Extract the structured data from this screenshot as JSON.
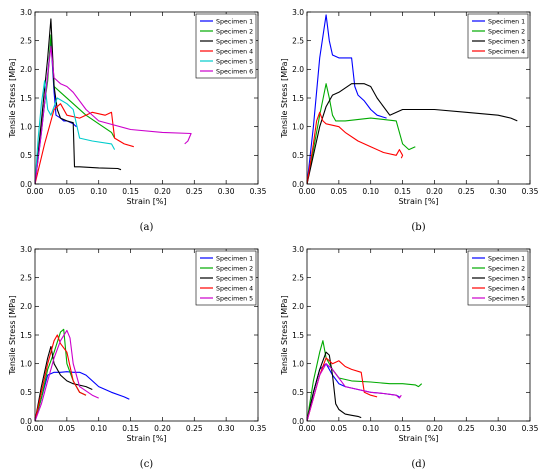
{
  "chart_data": [
    {
      "type": "line",
      "caption": "(a)",
      "xlabel": "Strain [%]",
      "ylabel": "Tensile Stress [MPa]",
      "xlim": [
        0,
        0.35
      ],
      "ylim": [
        0,
        3.0
      ],
      "xticks": [
        "0.00",
        "0.05",
        "0.10",
        "0.15",
        "0.20",
        "0.25",
        "0.30",
        "0.35"
      ],
      "yticks": [
        "0.0",
        "0.5",
        "1.0",
        "1.5",
        "2.0",
        "2.5",
        "3.0"
      ],
      "legend": "top-right",
      "grid": false,
      "series": [
        {
          "name": "Specimen 1",
          "color": "#0000ff",
          "x": [
            0,
            0.01,
            0.02,
            0.025,
            0.03,
            0.033,
            0.04,
            0.045,
            0.05,
            0.06,
            0.065
          ],
          "y": [
            0,
            0.9,
            1.9,
            2.5,
            1.6,
            1.2,
            1.15,
            1.1,
            1.1,
            1.05,
            1.0
          ]
        },
        {
          "name": "Specimen 2",
          "color": "#00aa00",
          "x": [
            0,
            0.01,
            0.02,
            0.025,
            0.03,
            0.04,
            0.06,
            0.08,
            0.1,
            0.12,
            0.125
          ],
          "y": [
            0,
            1.0,
            1.8,
            2.6,
            1.7,
            1.6,
            1.4,
            1.2,
            1.05,
            0.9,
            0.8
          ]
        },
        {
          "name": "Specimen 3",
          "color": "#000000",
          "x": [
            0,
            0.01,
            0.02,
            0.025,
            0.03,
            0.035,
            0.04,
            0.05,
            0.06,
            0.062,
            0.07,
            0.1,
            0.13,
            0.135
          ],
          "y": [
            0,
            1.1,
            2.2,
            2.88,
            1.7,
            1.3,
            1.15,
            1.1,
            1.07,
            0.3,
            0.3,
            0.28,
            0.27,
            0.25
          ]
        },
        {
          "name": "Specimen 4",
          "color": "#ff0000",
          "x": [
            0,
            0.015,
            0.03,
            0.04,
            0.05,
            0.07,
            0.09,
            0.11,
            0.12,
            0.125,
            0.14,
            0.155
          ],
          "y": [
            0,
            0.7,
            1.3,
            1.4,
            1.2,
            1.15,
            1.25,
            1.2,
            1.25,
            0.8,
            0.7,
            0.65
          ]
        },
        {
          "name": "Specimen 5",
          "color": "#00cccc",
          "x": [
            0,
            0.005,
            0.01,
            0.015,
            0.02,
            0.025,
            0.035,
            0.05,
            0.06,
            0.07,
            0.09,
            0.12,
            0.125
          ],
          "y": [
            0,
            0.8,
            1.4,
            1.8,
            1.3,
            1.2,
            1.5,
            1.4,
            1.3,
            0.8,
            0.75,
            0.7,
            0.6
          ]
        },
        {
          "name": "Specimen 6",
          "color": "#cc00cc",
          "x": [
            0,
            0.01,
            0.02,
            0.025,
            0.03,
            0.04,
            0.05,
            0.06,
            0.08,
            0.1,
            0.15,
            0.2,
            0.245,
            0.24,
            0.235
          ],
          "y": [
            0,
            0.9,
            1.9,
            2.4,
            1.85,
            1.75,
            1.7,
            1.6,
            1.3,
            1.1,
            0.95,
            0.9,
            0.88,
            0.75,
            0.7
          ]
        }
      ]
    },
    {
      "type": "line",
      "caption": "(b)",
      "xlabel": "Strain [%]",
      "ylabel": "Tensile Stress [MPa]",
      "xlim": [
        0,
        0.35
      ],
      "ylim": [
        0,
        3.0
      ],
      "xticks": [
        "0.00",
        "0.05",
        "0.10",
        "0.15",
        "0.20",
        "0.25",
        "0.30",
        "0.35"
      ],
      "yticks": [
        "0.0",
        "0.5",
        "1.0",
        "1.5",
        "2.0",
        "2.5",
        "3.0"
      ],
      "legend": "top-right",
      "grid": false,
      "series": [
        {
          "name": "Specimen 1",
          "color": "#0000ff",
          "x": [
            0,
            0.01,
            0.02,
            0.03,
            0.035,
            0.04,
            0.05,
            0.06,
            0.07,
            0.075,
            0.08,
            0.09,
            0.1,
            0.11,
            0.125
          ],
          "y": [
            0,
            1.0,
            2.2,
            2.95,
            2.5,
            2.25,
            2.2,
            2.2,
            2.2,
            1.7,
            1.55,
            1.45,
            1.3,
            1.2,
            1.15
          ]
        },
        {
          "name": "Specimen 2",
          "color": "#00aa00",
          "x": [
            0,
            0.01,
            0.02,
            0.03,
            0.035,
            0.04,
            0.045,
            0.06,
            0.1,
            0.14,
            0.15,
            0.16,
            0.17
          ],
          "y": [
            0,
            0.6,
            1.2,
            1.75,
            1.5,
            1.2,
            1.1,
            1.1,
            1.15,
            1.1,
            0.7,
            0.6,
            0.65
          ]
        },
        {
          "name": "Specimen 3",
          "color": "#000000",
          "x": [
            0,
            0.01,
            0.02,
            0.03,
            0.04,
            0.05,
            0.07,
            0.09,
            0.1,
            0.11,
            0.13,
            0.15,
            0.2,
            0.25,
            0.3,
            0.32,
            0.33
          ],
          "y": [
            0,
            0.5,
            1.0,
            1.35,
            1.55,
            1.6,
            1.75,
            1.75,
            1.7,
            1.5,
            1.2,
            1.3,
            1.3,
            1.25,
            1.2,
            1.15,
            1.1
          ]
        },
        {
          "name": "Specimen 4",
          "color": "#ff0000",
          "x": [
            0,
            0.01,
            0.015,
            0.02,
            0.025,
            0.03,
            0.05,
            0.06,
            0.08,
            0.1,
            0.12,
            0.14,
            0.145,
            0.15,
            0.148
          ],
          "y": [
            0,
            0.7,
            1.1,
            1.25,
            1.1,
            1.05,
            1.0,
            0.9,
            0.75,
            0.65,
            0.55,
            0.5,
            0.6,
            0.5,
            0.45
          ]
        }
      ]
    },
    {
      "type": "line",
      "caption": "(c)",
      "xlabel": "Strain [%]",
      "ylabel": "Tensile Stress [MPa]",
      "xlim": [
        0,
        0.35
      ],
      "ylim": [
        0,
        3.0
      ],
      "xticks": [
        "0.00",
        "0.05",
        "0.10",
        "0.15",
        "0.20",
        "0.25",
        "0.30",
        "0.35"
      ],
      "yticks": [
        "0.0",
        "0.5",
        "1.0",
        "1.5",
        "2.0",
        "2.5",
        "3.0"
      ],
      "legend": "top-right",
      "grid": false,
      "series": [
        {
          "name": "Specimen 1",
          "color": "#0000ff",
          "x": [
            0,
            0.01,
            0.02,
            0.03,
            0.04,
            0.05,
            0.06,
            0.07,
            0.08,
            0.1,
            0.12,
            0.14,
            0.148
          ],
          "y": [
            0,
            0.4,
            0.8,
            0.85,
            0.85,
            0.86,
            0.85,
            0.85,
            0.8,
            0.6,
            0.5,
            0.42,
            0.38
          ]
        },
        {
          "name": "Specimen 2",
          "color": "#00aa00",
          "x": [
            0,
            0.01,
            0.02,
            0.03,
            0.04,
            0.045,
            0.05,
            0.06,
            0.07,
            0.08
          ],
          "y": [
            0,
            0.4,
            0.9,
            1.2,
            1.55,
            1.6,
            1.0,
            0.7,
            0.5,
            0.45
          ]
        },
        {
          "name": "Specimen 3",
          "color": "#000000",
          "x": [
            0,
            0.01,
            0.02,
            0.025,
            0.03,
            0.04,
            0.05,
            0.06,
            0.08,
            0.09
          ],
          "y": [
            0,
            0.6,
            1.1,
            1.3,
            1.0,
            0.8,
            0.7,
            0.65,
            0.6,
            0.55
          ]
        },
        {
          "name": "Specimen 4",
          "color": "#ff0000",
          "x": [
            0,
            0.01,
            0.02,
            0.03,
            0.035,
            0.04,
            0.05,
            0.06,
            0.07,
            0.08
          ],
          "y": [
            0,
            0.5,
            1.0,
            1.4,
            1.5,
            1.35,
            1.2,
            0.7,
            0.5,
            0.45
          ]
        },
        {
          "name": "Specimen 5",
          "color": "#cc00cc",
          "x": [
            0,
            0.01,
            0.02,
            0.03,
            0.04,
            0.05,
            0.055,
            0.06,
            0.07,
            0.09,
            0.1
          ],
          "y": [
            0,
            0.3,
            0.7,
            1.1,
            1.4,
            1.58,
            1.45,
            1.0,
            0.6,
            0.45,
            0.4
          ]
        }
      ]
    },
    {
      "type": "line",
      "caption": "(d)",
      "xlabel": "Strain [%]",
      "ylabel": "Tensile Stress [MPa]",
      "xlim": [
        0,
        0.35
      ],
      "ylim": [
        0,
        3.0
      ],
      "xticks": [
        "0.00",
        "0.05",
        "0.10",
        "0.15",
        "0.20",
        "0.25",
        "0.30",
        "0.35"
      ],
      "yticks": [
        "0.0",
        "0.5",
        "1.0",
        "1.5",
        "2.0",
        "2.5",
        "3.0"
      ],
      "legend": "top-right",
      "grid": false,
      "series": [
        {
          "name": "Specimen 1",
          "color": "#0000ff",
          "x": [
            0,
            0.01,
            0.02,
            0.03,
            0.04,
            0.05,
            0.06,
            0.08,
            0.1,
            0.12,
            0.14,
            0.145
          ],
          "y": [
            0,
            0.5,
            0.9,
            1.0,
            0.8,
            0.65,
            0.6,
            0.55,
            0.5,
            0.48,
            0.45,
            0.42
          ]
        },
        {
          "name": "Specimen 2",
          "color": "#00aa00",
          "x": [
            0,
            0.01,
            0.02,
            0.025,
            0.03,
            0.04,
            0.05,
            0.07,
            0.1,
            0.13,
            0.15,
            0.17,
            0.175,
            0.18
          ],
          "y": [
            0,
            0.7,
            1.2,
            1.4,
            1.1,
            0.9,
            0.75,
            0.7,
            0.68,
            0.65,
            0.65,
            0.63,
            0.6,
            0.65
          ]
        },
        {
          "name": "Specimen 3",
          "color": "#000000",
          "x": [
            0,
            0.01,
            0.02,
            0.03,
            0.035,
            0.04,
            0.045,
            0.05,
            0.06,
            0.07,
            0.08,
            0.085
          ],
          "y": [
            0,
            0.5,
            0.9,
            1.2,
            1.15,
            0.8,
            0.3,
            0.2,
            0.12,
            0.1,
            0.08,
            0.06
          ]
        },
        {
          "name": "Specimen 4",
          "color": "#ff0000",
          "x": [
            0,
            0.01,
            0.02,
            0.03,
            0.04,
            0.05,
            0.06,
            0.07,
            0.085,
            0.09,
            0.1,
            0.11
          ],
          "y": [
            0,
            0.4,
            0.8,
            1.1,
            1.0,
            1.05,
            0.95,
            0.9,
            0.85,
            0.5,
            0.45,
            0.42
          ]
        },
        {
          "name": "Specimen 5",
          "color": "#cc00cc",
          "x": [
            0,
            0.01,
            0.02,
            0.03,
            0.04,
            0.05,
            0.06,
            0.08,
            0.1,
            0.12,
            0.14,
            0.145,
            0.148
          ],
          "y": [
            0,
            0.4,
            0.8,
            1.0,
            0.9,
            0.75,
            0.6,
            0.55,
            0.5,
            0.48,
            0.45,
            0.4,
            0.45
          ]
        }
      ]
    }
  ]
}
